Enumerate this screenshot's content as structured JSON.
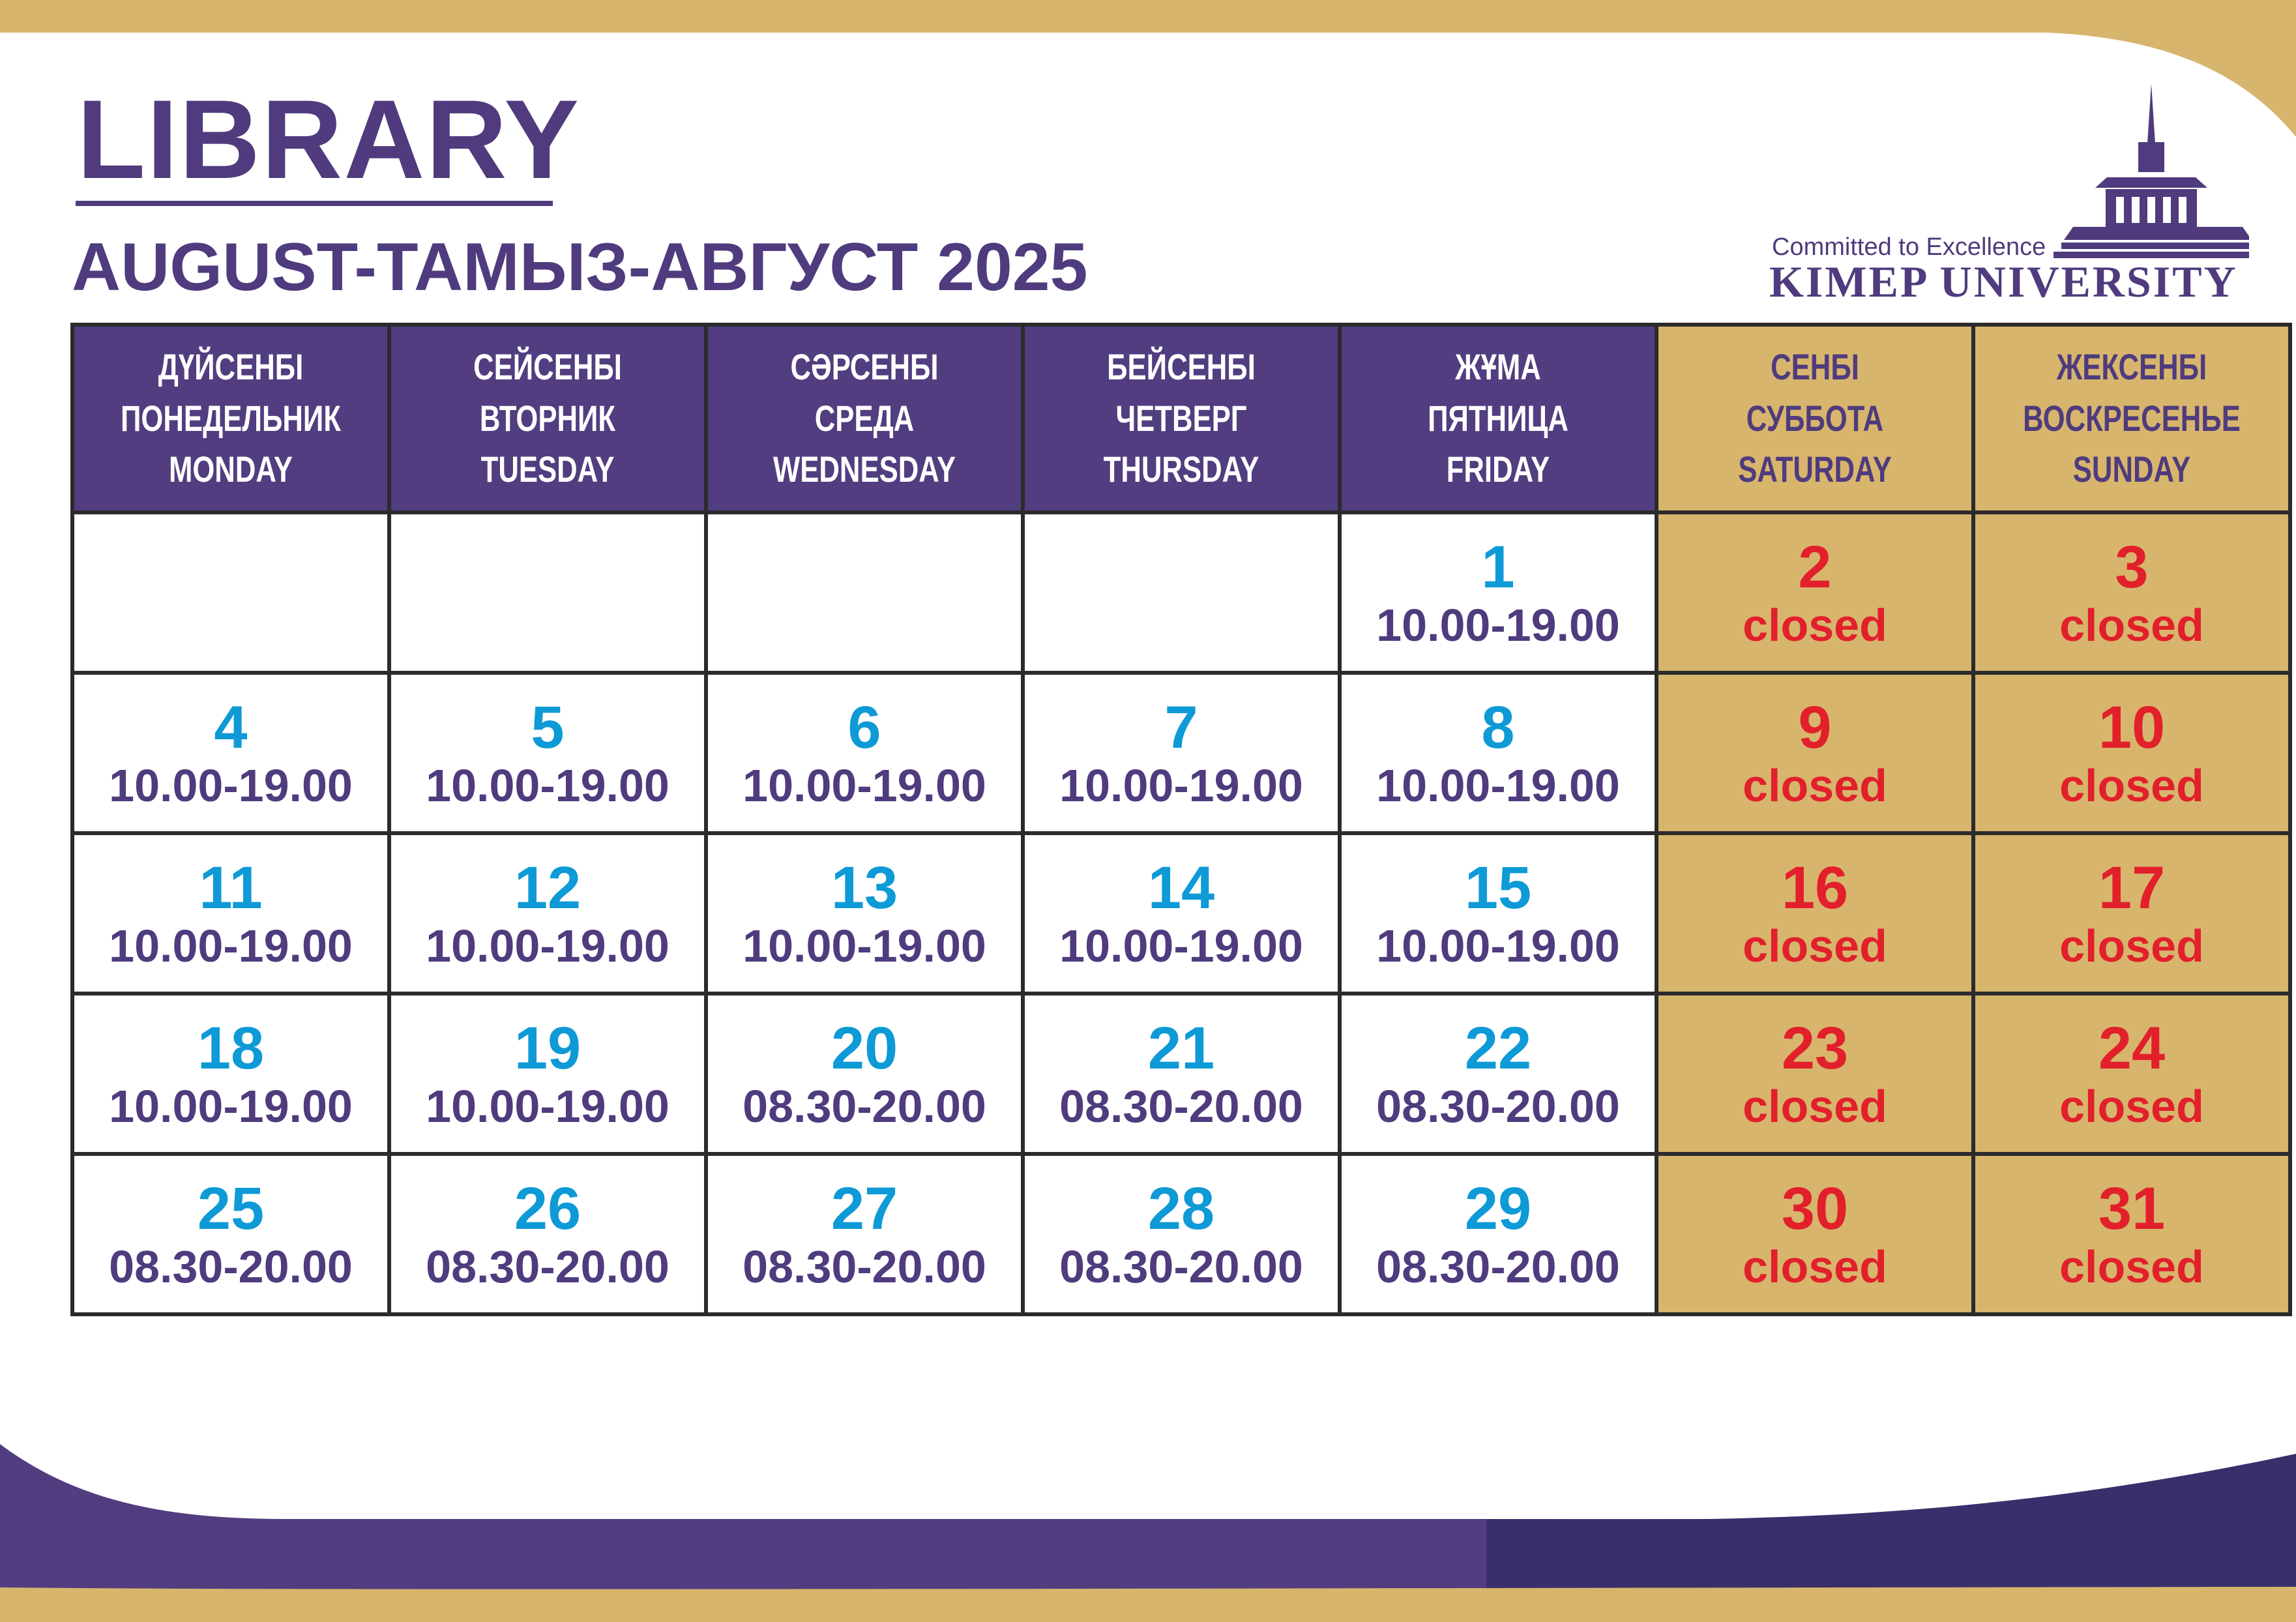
{
  "header": {
    "title": "LIBRARY",
    "subtitle": "AUGUST-ТАМЫЗ-АВГУСТ 2025"
  },
  "logo": {
    "tagline": "Committed to Excellence",
    "name": "KIMEP UNIVERSITY"
  },
  "colors": {
    "purple": "#523d80",
    "gold": "#d7b56d",
    "day_blue": "#0e9ad6",
    "closed_red": "#e2202b"
  },
  "calendar": {
    "days": [
      {
        "kz": "ДҮЙСЕНБІ",
        "ru": "ПОНЕДЕЛЬНИК",
        "en": "MONDAY"
      },
      {
        "kz": "СЕЙСЕНБІ",
        "ru": "ВТОРНИК",
        "en": "TUESDAY"
      },
      {
        "kz": "СӘРСЕНБІ",
        "ru": "СРЕДА",
        "en": "WEDNESDAY"
      },
      {
        "kz": "БЕЙСЕНБІ",
        "ru": "ЧЕТВЕРГ",
        "en": "THURSDAY"
      },
      {
        "kz": "ЖҰМА",
        "ru": "ПЯТНИЦА",
        "en": "FRIDAY"
      },
      {
        "kz": "СЕНБІ",
        "ru": "СУББОТА",
        "en": "SATURDAY"
      },
      {
        "kz": "ЖЕКСЕНБІ",
        "ru": "ВОСКРЕСЕНЬЕ",
        "en": "SUNDAY"
      }
    ],
    "weeks": [
      [
        {
          "day": "",
          "hours": ""
        },
        {
          "day": "",
          "hours": ""
        },
        {
          "day": "",
          "hours": ""
        },
        {
          "day": "",
          "hours": ""
        },
        {
          "day": "1",
          "hours": "10.00-19.00"
        },
        {
          "day": "2",
          "hours": "closed"
        },
        {
          "day": "3",
          "hours": "closed"
        }
      ],
      [
        {
          "day": "4",
          "hours": "10.00-19.00"
        },
        {
          "day": "5",
          "hours": "10.00-19.00"
        },
        {
          "day": "6",
          "hours": "10.00-19.00"
        },
        {
          "day": "7",
          "hours": "10.00-19.00"
        },
        {
          "day": "8",
          "hours": "10.00-19.00"
        },
        {
          "day": "9",
          "hours": "closed"
        },
        {
          "day": "10",
          "hours": "closed"
        }
      ],
      [
        {
          "day": "11",
          "hours": "10.00-19.00"
        },
        {
          "day": "12",
          "hours": "10.00-19.00"
        },
        {
          "day": "13",
          "hours": "10.00-19.00"
        },
        {
          "day": "14",
          "hours": "10.00-19.00"
        },
        {
          "day": "15",
          "hours": "10.00-19.00"
        },
        {
          "day": "16",
          "hours": "closed"
        },
        {
          "day": "17",
          "hours": "closed"
        }
      ],
      [
        {
          "day": "18",
          "hours": "10.00-19.00"
        },
        {
          "day": "19",
          "hours": "10.00-19.00"
        },
        {
          "day": "20",
          "hours": "08.30-20.00"
        },
        {
          "day": "21",
          "hours": "08.30-20.00"
        },
        {
          "day": "22",
          "hours": "08.30-20.00"
        },
        {
          "day": "23",
          "hours": "closed"
        },
        {
          "day": "24",
          "hours": "closed"
        }
      ],
      [
        {
          "day": "25",
          "hours": "08.30-20.00"
        },
        {
          "day": "26",
          "hours": "08.30-20.00"
        },
        {
          "day": "27",
          "hours": "08.30-20.00"
        },
        {
          "day": "28",
          "hours": "08.30-20.00"
        },
        {
          "day": "29",
          "hours": "08.30-20.00"
        },
        {
          "day": "30",
          "hours": "closed"
        },
        {
          "day": "31",
          "hours": "closed"
        }
      ]
    ]
  }
}
